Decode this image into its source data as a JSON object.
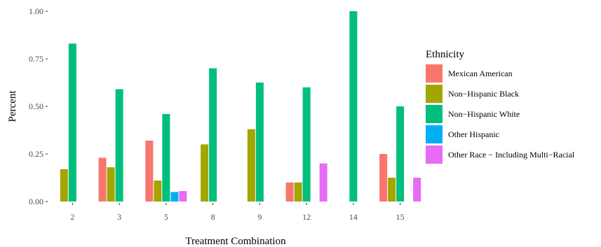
{
  "chart_data": {
    "type": "bar",
    "title": "",
    "xlabel": "Treatment Combination",
    "ylabel": "Percent",
    "ylim": [
      0,
      1
    ],
    "yticks": [
      "0.00",
      "0.25",
      "0.50",
      "0.75",
      "1.00"
    ],
    "ytick_values": [
      0,
      0.25,
      0.5,
      0.75,
      1.0
    ],
    "categories": [
      "2",
      "3",
      "5",
      "8",
      "9",
      "12",
      "14",
      "15"
    ],
    "grid": false,
    "legend": {
      "title": "Ethnicity",
      "position": "right"
    },
    "series": [
      {
        "name": "Mexican American",
        "color": "#F8766D",
        "values": [
          null,
          0.23,
          0.32,
          null,
          null,
          0.1,
          null,
          0.25
        ]
      },
      {
        "name": "Non−Hispanic Black",
        "color": "#A3A500",
        "values": [
          0.17,
          0.18,
          0.11,
          0.3,
          0.38,
          0.1,
          null,
          0.125
        ]
      },
      {
        "name": "Non−Hispanic White",
        "color": "#00BF7D",
        "values": [
          0.83,
          0.59,
          0.46,
          0.7,
          0.625,
          0.6,
          1.0,
          0.5
        ]
      },
      {
        "name": "Other Hispanic",
        "color": "#00B0F6",
        "values": [
          null,
          null,
          0.05,
          null,
          null,
          null,
          null,
          null
        ]
      },
      {
        "name": "Other Race − Including Multi−Racial",
        "color": "#E76BF3",
        "values": [
          null,
          null,
          0.055,
          null,
          null,
          0.2,
          null,
          0.125
        ]
      }
    ]
  }
}
